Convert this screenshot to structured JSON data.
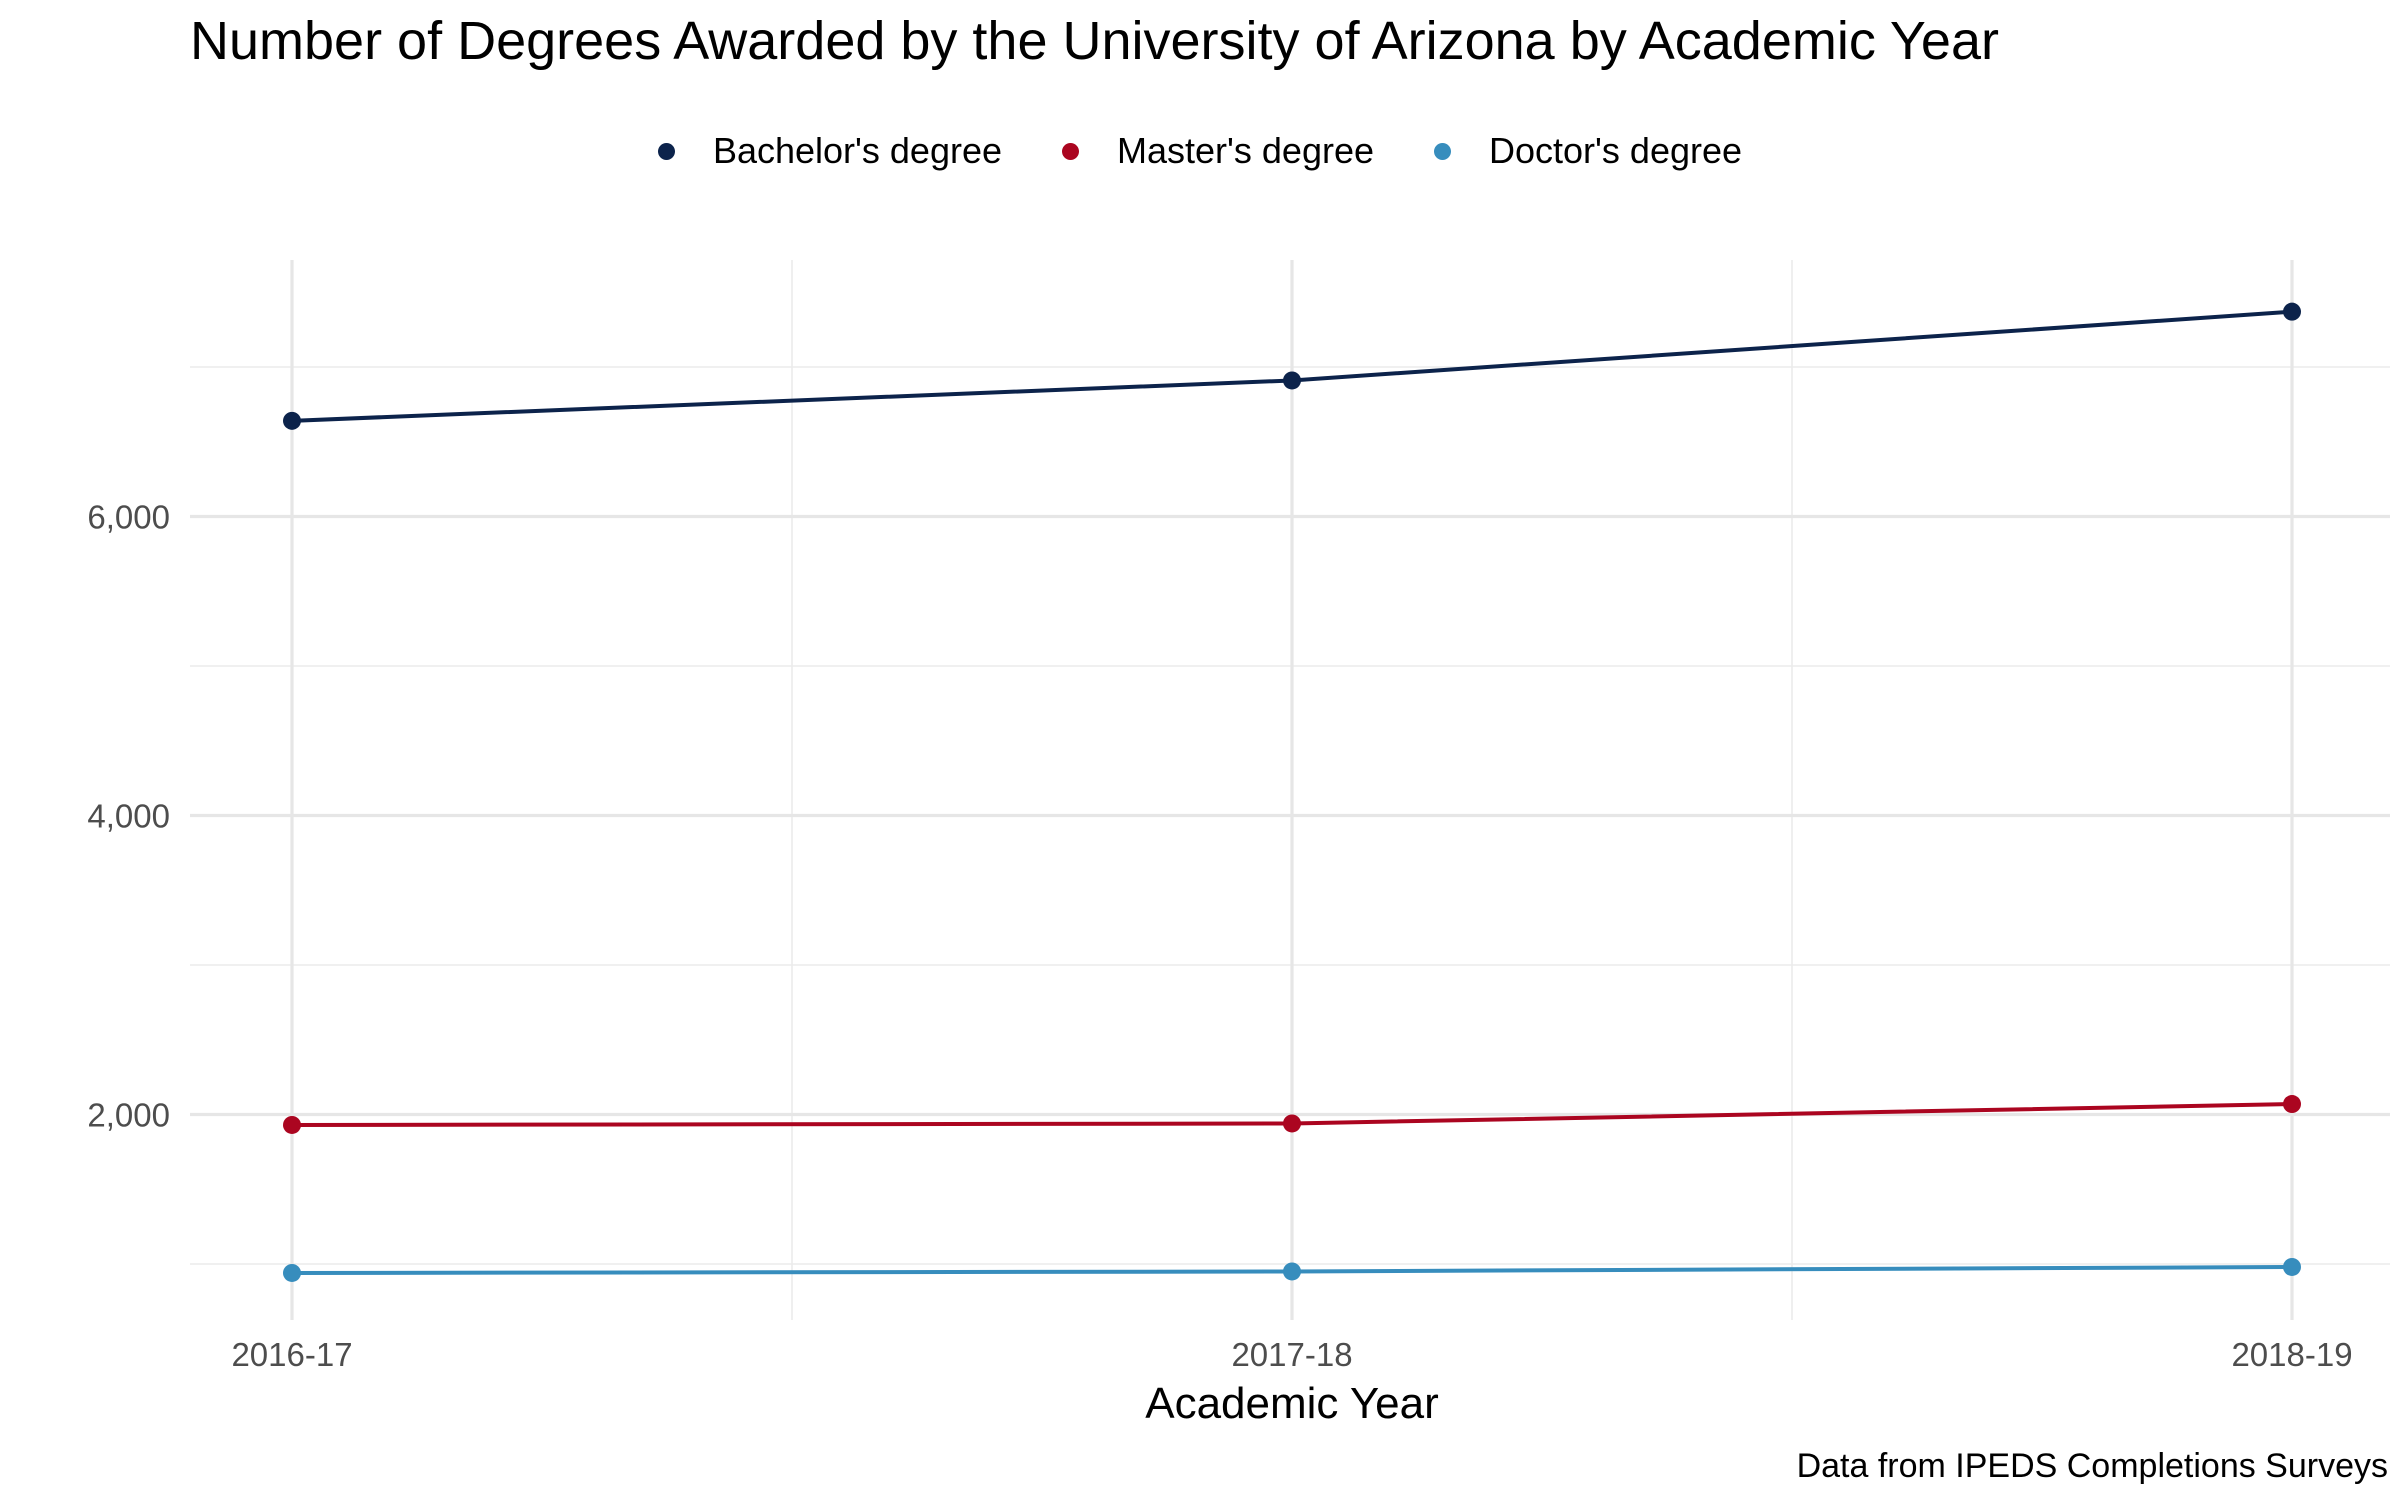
{
  "chart_data": {
    "type": "line",
    "title": "Number of Degrees Awarded by the University of Arizona by Academic Year",
    "xlabel": "Academic Year",
    "ylabel": "",
    "caption": "Data from IPEDS Completions Surveys",
    "categories": [
      "2016-17",
      "2017-18",
      "2018-19"
    ],
    "ylim": [
      700,
      7700
    ],
    "yticks": [
      2000,
      4000,
      6000
    ],
    "ytick_labels": [
      "2,000",
      "4,000",
      "6,000"
    ],
    "grid": true,
    "legend_position": "top",
    "series": [
      {
        "name": "Bachelor's degree",
        "color": "#0c234b",
        "values": [
          6640,
          6910,
          7370
        ]
      },
      {
        "name": "Master's degree",
        "color": "#ab0520",
        "values": [
          1930,
          1940,
          2070
        ]
      },
      {
        "name": "Doctor's degree",
        "color": "#378dbd",
        "values": [
          940,
          950,
          980
        ]
      }
    ]
  }
}
